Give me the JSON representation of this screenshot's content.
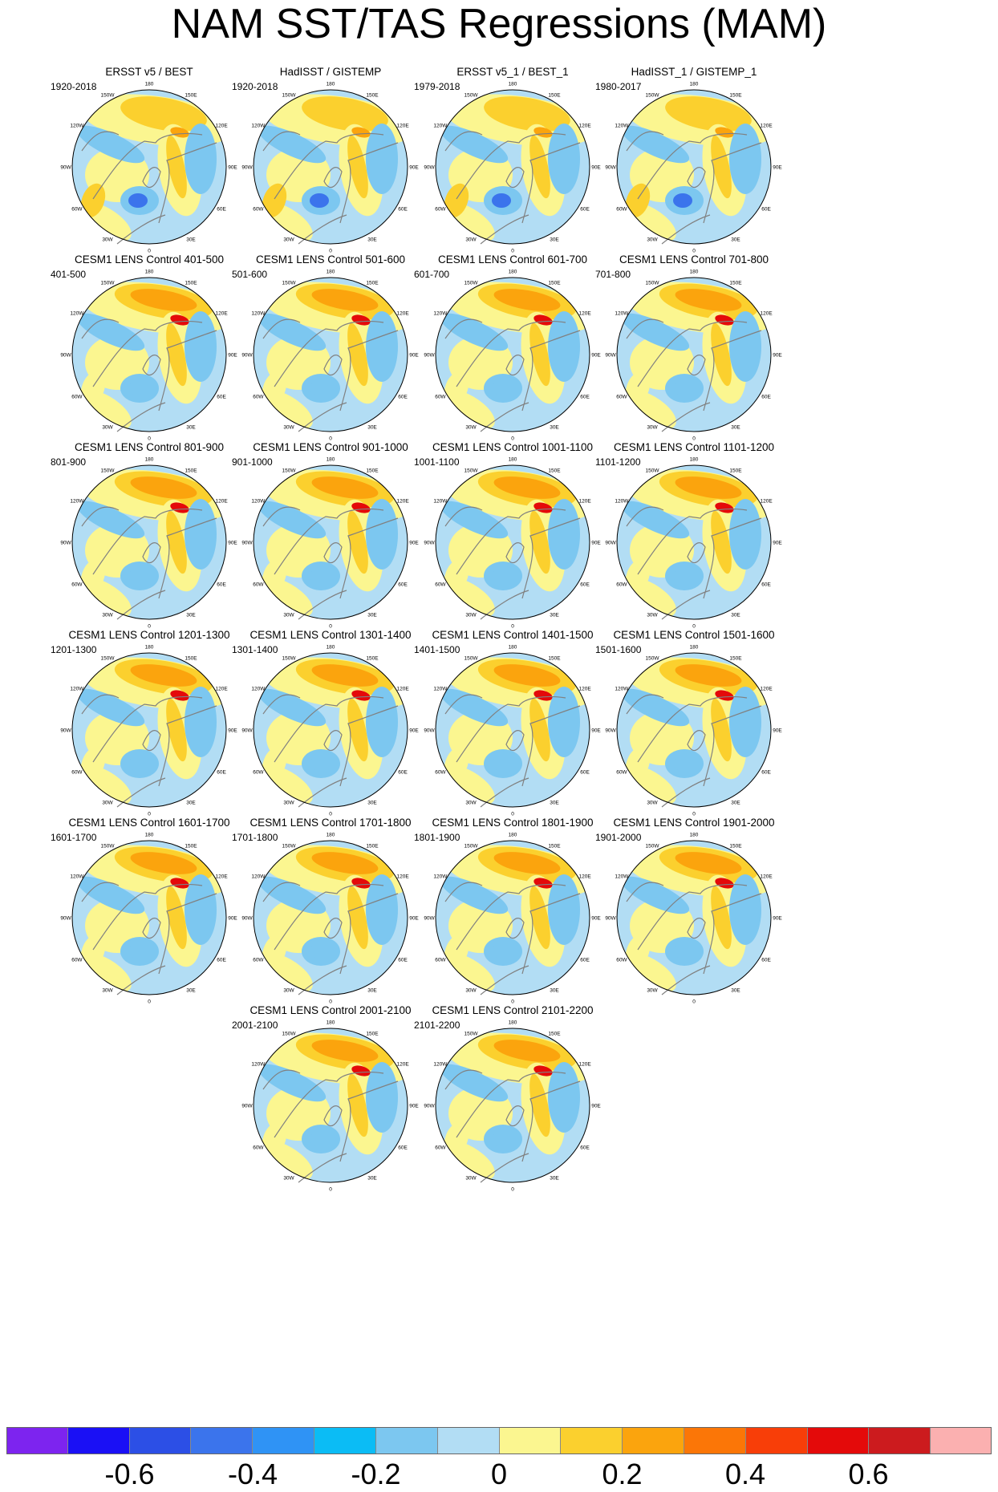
{
  "title": "NAM SST/TAS Regressions (MAM)",
  "panels": [
    {
      "title": "ERSST v5 / BEST",
      "period": "1920-2018"
    },
    {
      "title": "HadISST / GISTEMP",
      "period": "1920-2018"
    },
    {
      "title": "ERSST v5_1 / BEST_1",
      "period": "1979-2018"
    },
    {
      "title": "HadISST_1 / GISTEMP_1",
      "period": "1980-2017"
    },
    {
      "title": "CESM1 LENS Control 401-500",
      "period": "401-500"
    },
    {
      "title": "CESM1 LENS Control 501-600",
      "period": "501-600"
    },
    {
      "title": "CESM1 LENS Control 601-700",
      "period": "601-700"
    },
    {
      "title": "CESM1 LENS Control 701-800",
      "period": "701-800"
    },
    {
      "title": "CESM1 LENS Control 801-900",
      "period": "801-900"
    },
    {
      "title": "CESM1 LENS Control 901-1000",
      "period": "901-1000"
    },
    {
      "title": "CESM1 LENS Control 1001-1100",
      "period": "1001-1100"
    },
    {
      "title": "CESM1 LENS Control 1101-1200",
      "period": "1101-1200"
    },
    {
      "title": "CESM1 LENS Control 1201-1300",
      "period": "1201-1300"
    },
    {
      "title": "CESM1 LENS Control 1301-1400",
      "period": "1301-1400"
    },
    {
      "title": "CESM1 LENS Control 1401-1500",
      "period": "1401-1500"
    },
    {
      "title": "CESM1 LENS Control 1501-1600",
      "period": "1501-1600"
    },
    {
      "title": "CESM1 LENS Control 1601-1700",
      "period": "1601-1700"
    },
    {
      "title": "CESM1 LENS Control 1701-1800",
      "period": "1701-1800"
    },
    {
      "title": "CESM1 LENS Control 1801-1900",
      "period": "1801-1900"
    },
    {
      "title": "CESM1 LENS Control 1901-2000",
      "period": "1901-2000"
    },
    {
      "title": "CESM1 LENS Control 2001-2100",
      "period": "2001-2100"
    },
    {
      "title": "CESM1 LENS Control 2101-2200",
      "period": "2101-2200"
    }
  ],
  "longitude_labels": {
    "n": "180",
    "nne": "150E",
    "ene": "120E",
    "e": "90E",
    "ese": "60E",
    "sse": "30E",
    "s": "0",
    "ssw": "30W",
    "wsw": "60W",
    "w": "90W",
    "wnw": "120W",
    "nnw": "150W"
  },
  "colorbar": {
    "colors": [
      "#7d24ef",
      "#1a10f5",
      "#2c4fe6",
      "#3b74ec",
      "#2f93f5",
      "#0bbcf5",
      "#7cc7f0",
      "#b2ddf4",
      "#fbf690",
      "#fbd02e",
      "#fba40d",
      "#fb7607",
      "#f83e08",
      "#e40a0a",
      "#cc1b1e",
      "#fbb0b0"
    ],
    "labels": [
      "-0.6",
      "-0.4",
      "-0.2",
      "0",
      "0.2",
      "0.4",
      "0.6"
    ]
  },
  "palette": {
    "ocean_base": "#b2ddf4",
    "pos_weak": "#fbf690",
    "pos_mid": "#fbd02e",
    "pos_strong": "#fba40d",
    "pos_max": "#e40a0a",
    "neg_weak": "#7cc7f0",
    "neg_mid": "#3b74ec",
    "coast": "#808080"
  }
}
